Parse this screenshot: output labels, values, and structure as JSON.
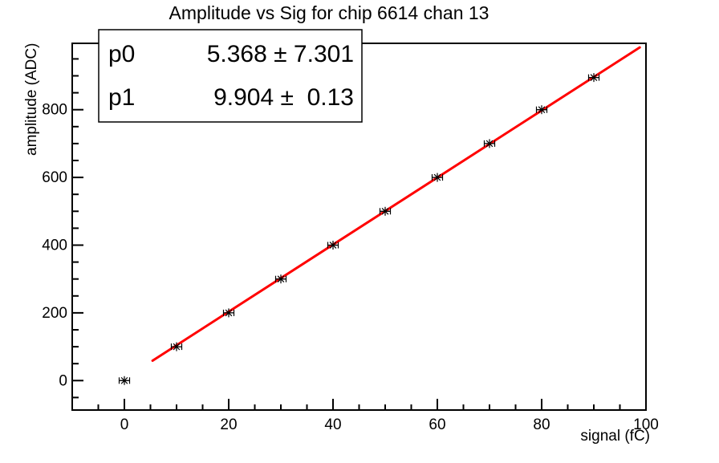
{
  "page": {
    "background": "#ffffff",
    "foreground": "#000000"
  },
  "stats_box": {
    "rows": [
      {
        "param": "p0",
        "value": "5.368 ± 7.301"
      },
      {
        "param": "p1",
        "value": "9.904 ±  0.13"
      }
    ]
  },
  "chart_data": {
    "type": "scatter",
    "title": "Amplitude vs Sig for chip 6614 chan 13",
    "xlabel": "signal (fC)",
    "ylabel": "amplitude (ADC)",
    "x": [
      0,
      10,
      20,
      30,
      40,
      50,
      60,
      70,
      80,
      90
    ],
    "y": [
      0,
      100,
      200,
      300,
      400,
      500,
      600,
      700,
      800,
      895
    ],
    "x_error": 1,
    "marker": "asterisk",
    "marker_color": "#000000",
    "frame_color": "#000000",
    "background": "#ffffff",
    "grid": false,
    "xlim": [
      -10,
      100
    ],
    "ylim": [
      -87,
      996
    ],
    "x_major_ticks": [
      0,
      20,
      40,
      60,
      80,
      100
    ],
    "x_minor_step": 5,
    "y_major_ticks": [
      0,
      200,
      400,
      600,
      800
    ],
    "y_minor_step": 50,
    "fit": {
      "type": "linear",
      "p0": 5.368,
      "p0_error": 7.301,
      "p1": 9.904,
      "p1_error": 0.13,
      "x_start": 5.4,
      "x_end": 98.8,
      "color": "#ff0000"
    }
  }
}
